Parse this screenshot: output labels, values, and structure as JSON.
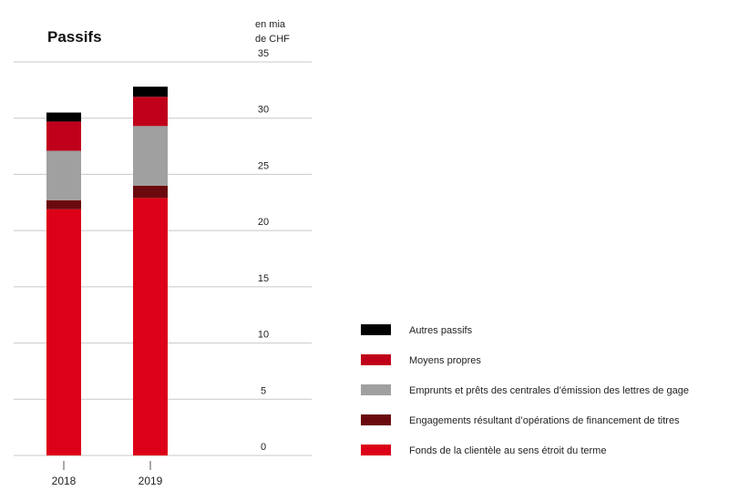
{
  "chart_data": {
    "type": "bar",
    "stacked": true,
    "title": "Passifs",
    "ylabel_line1": "en mia",
    "ylabel_line2": "de CHF",
    "ylim": [
      0,
      35
    ],
    "yticks": [
      "0",
      "5",
      "10",
      "15",
      "20",
      "25",
      "30",
      "35"
    ],
    "grid": true,
    "legend_placement": "right",
    "categories": [
      "2018",
      "2019"
    ],
    "series": [
      {
        "name": "Fonds de la clientèle au sens étroit du terme",
        "color": "#dc0018",
        "values": [
          21.9,
          22.9
        ]
      },
      {
        "name": "Engagements résultant d’opérations de financement de titres",
        "color": "#6b0a0e",
        "values": [
          0.8,
          1.1
        ]
      },
      {
        "name": "Emprunts et prêts des centrales d’émission des lettres de gage",
        "color": "#a0a0a0",
        "values": [
          4.4,
          5.3
        ]
      },
      {
        "name": "Moyens propres",
        "color": "#c0001b",
        "values": [
          2.6,
          2.6
        ]
      },
      {
        "name": "Autres passifs",
        "color": "#000000",
        "values": [
          0.8,
          0.9
        ]
      }
    ]
  }
}
